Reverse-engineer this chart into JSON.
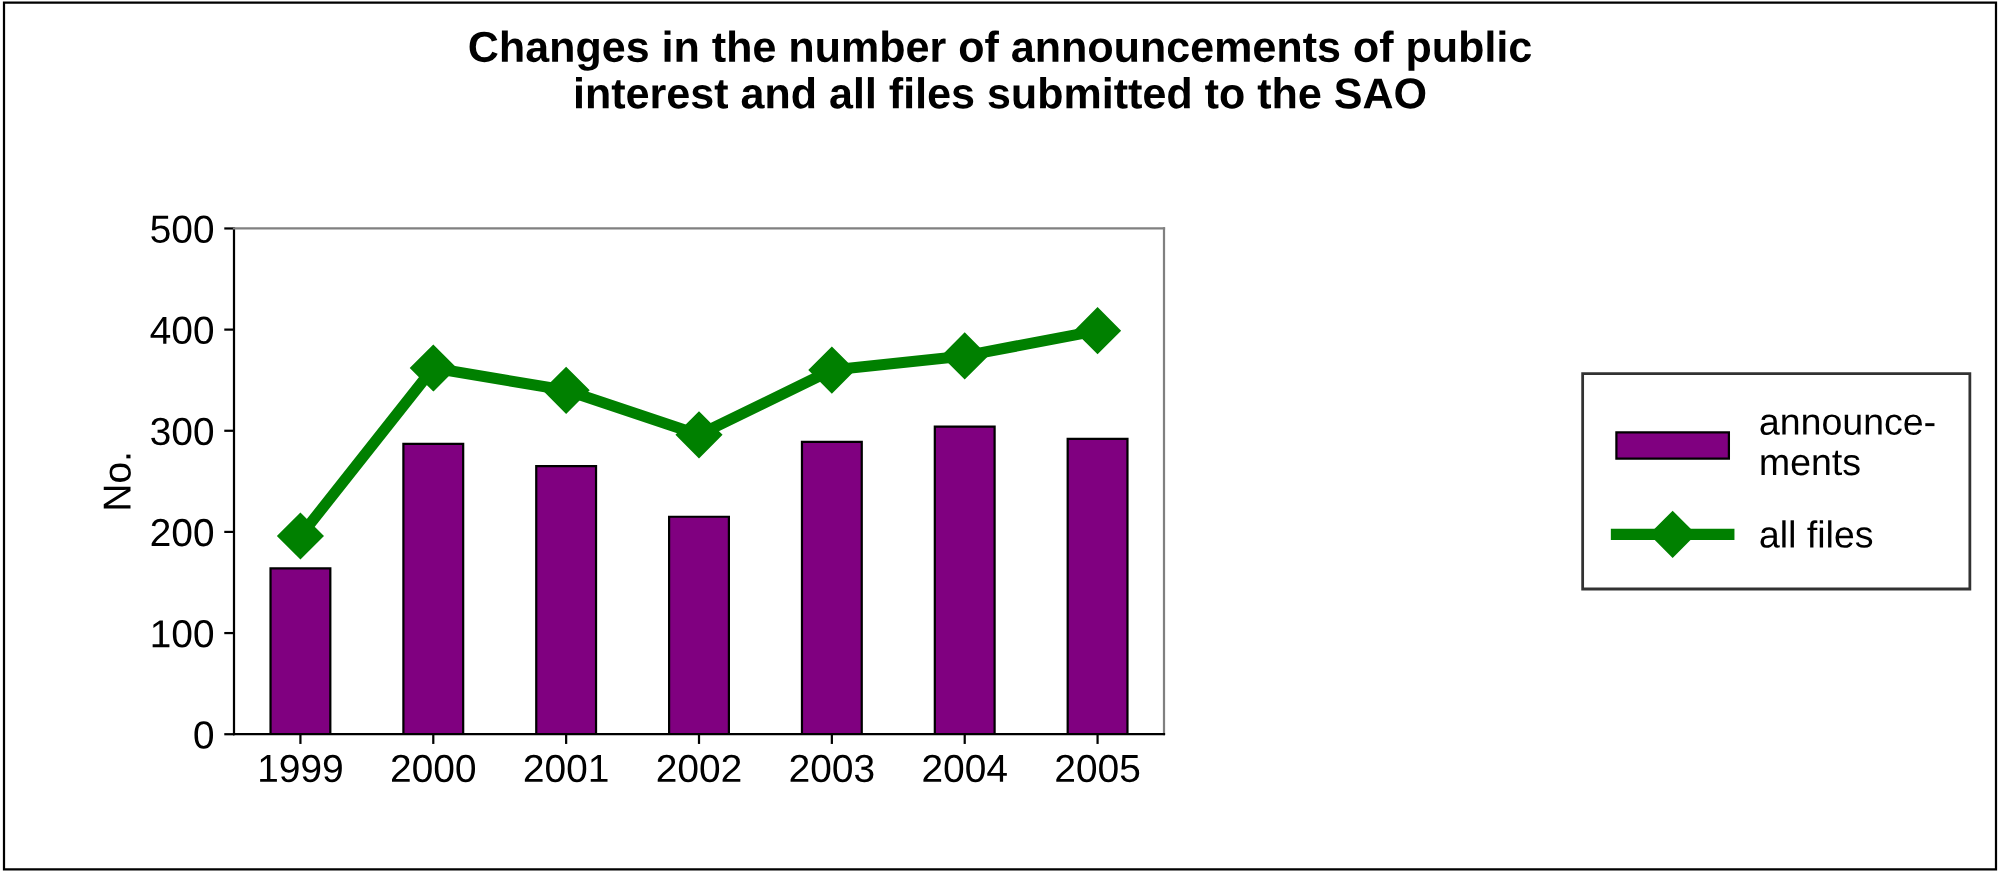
{
  "chart_data": {
    "type": "bar",
    "title": "Changes in the number of announcements of public\ninterest and all files submitted to the SAO",
    "ylabel": "No.",
    "categories": [
      "1999",
      "2000",
      "2001",
      "2002",
      "2003",
      "2004",
      "2005"
    ],
    "series": [
      {
        "name": "announce-\nments",
        "color": "#800080",
        "values": [
          164,
          287,
          265,
          215,
          289,
          304,
          292
        ]
      },
      {
        "name": "all files",
        "type": "line",
        "color": "#008000",
        "marker": "diamond",
        "values": [
          196,
          362,
          340,
          296,
          360,
          374,
          399
        ]
      }
    ],
    "ylim": [
      0,
      500
    ],
    "yticks": [
      0,
      100,
      200,
      300,
      400,
      500
    ],
    "grid": false,
    "legend": "right"
  }
}
